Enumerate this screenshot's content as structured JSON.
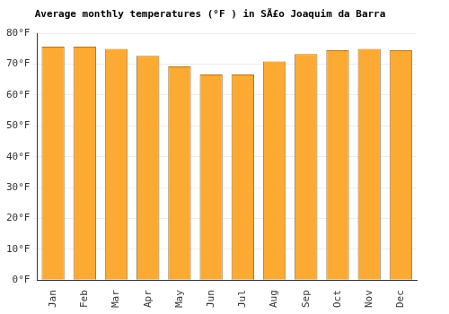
{
  "chart_data": {
    "type": "bar",
    "title": "Average monthly temperatures (°F ) in SÃ£o Joaquim da Barra",
    "categories": [
      "Jan",
      "Feb",
      "Mar",
      "Apr",
      "May",
      "Jun",
      "Jul",
      "Aug",
      "Sep",
      "Oct",
      "Nov",
      "Dec"
    ],
    "values": [
      75.7,
      75.7,
      75.0,
      72.7,
      69.3,
      66.7,
      66.7,
      70.9,
      73.3,
      74.5,
      75.0,
      74.5
    ],
    "color": "#fdaa33",
    "ylim": [
      0,
      80
    ],
    "yticks": [
      {
        "value": 0,
        "label": "0°F"
      },
      {
        "value": 10,
        "label": "10°F"
      },
      {
        "value": 20,
        "label": "20°F"
      },
      {
        "value": 30,
        "label": "30°F"
      },
      {
        "value": 40,
        "label": "40°F"
      },
      {
        "value": 50,
        "label": "50°F"
      },
      {
        "value": 60,
        "label": "60°F"
      },
      {
        "value": 70,
        "label": "70°F"
      },
      {
        "value": 80,
        "label": "80°F"
      }
    ],
    "grid": true
  }
}
